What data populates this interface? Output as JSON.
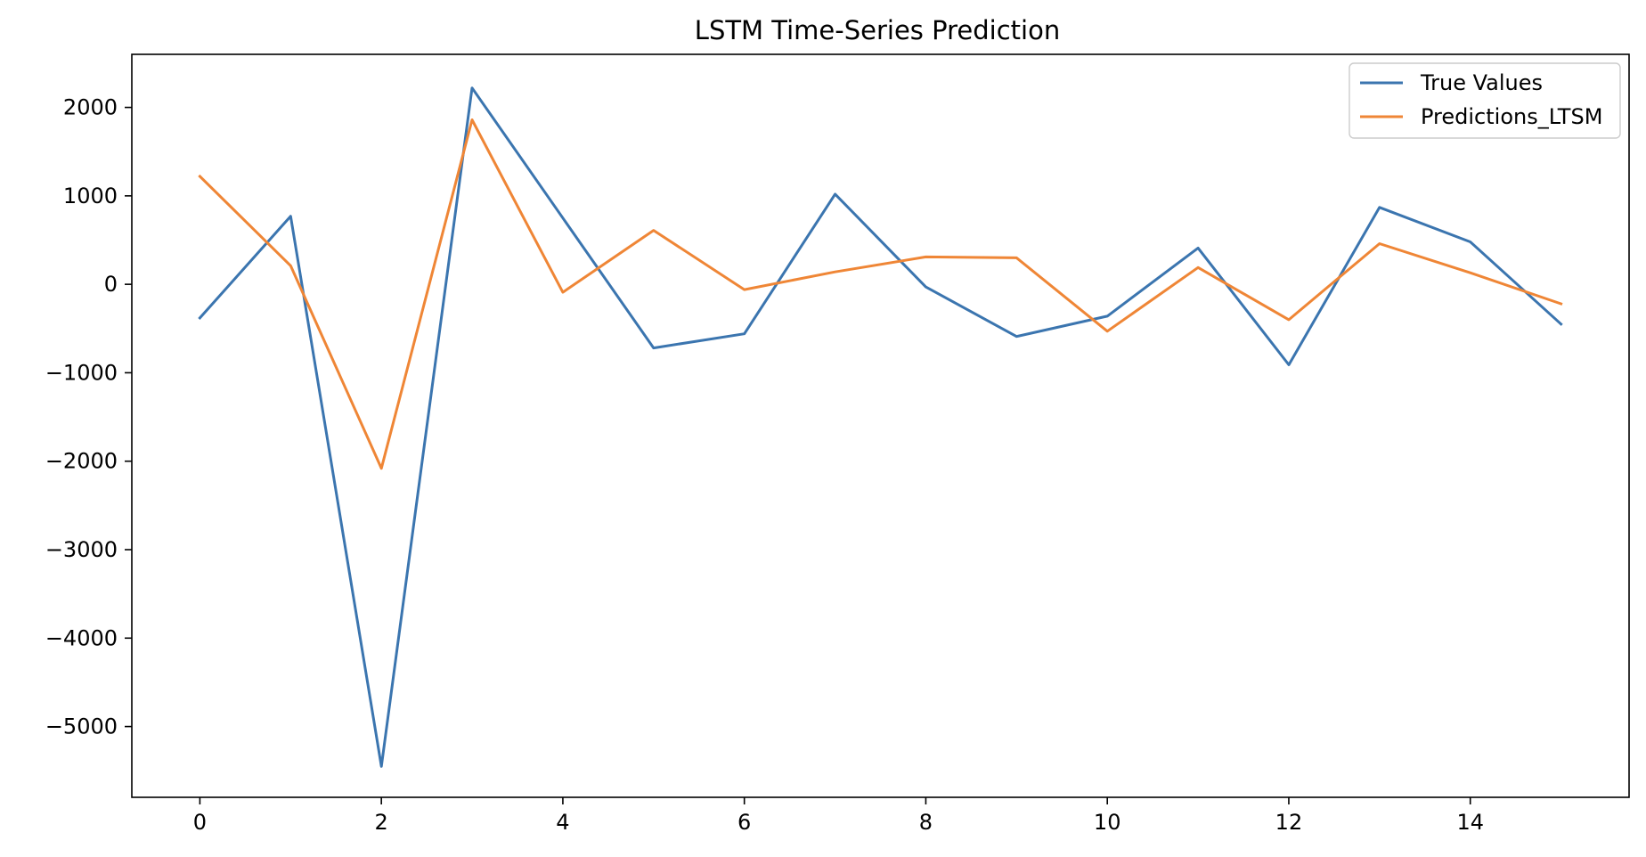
{
  "chart_data": {
    "type": "line",
    "title": "LSTM Time-Series Prediction",
    "xlabel": "",
    "ylabel": "",
    "x": [
      0,
      1,
      2,
      3,
      4,
      5,
      6,
      7,
      8,
      9,
      10,
      11,
      12,
      13,
      14,
      15
    ],
    "xlim": [
      -0.75,
      15.75
    ],
    "ylim": [
      -5800,
      2600
    ],
    "xticks": [
      0,
      2,
      4,
      6,
      8,
      10,
      12,
      14
    ],
    "xtick_labels": [
      "0",
      "2",
      "4",
      "6",
      "8",
      "10",
      "12",
      "14"
    ],
    "yticks": [
      2000,
      1000,
      0,
      -1000,
      -2000,
      -3000,
      -4000,
      -5000
    ],
    "ytick_labels": [
      "2000",
      "1000",
      "0",
      "−1000",
      "−2000",
      "−3000",
      "−4000",
      "−5000"
    ],
    "grid": false,
    "legend": "top-right",
    "series": [
      {
        "name": "True Values",
        "color": "#3b75af",
        "values": [
          -380,
          770,
          -5450,
          2220,
          750,
          -720,
          -560,
          1020,
          -30,
          -590,
          -360,
          410,
          -910,
          870,
          480,
          -450
        ]
      },
      {
        "name": "Predictions_LTSM",
        "color": "#ef8636",
        "values": [
          1220,
          210,
          -2080,
          1860,
          -90,
          610,
          -60,
          140,
          310,
          300,
          -530,
          190,
          -400,
          460,
          130,
          -220
        ]
      }
    ]
  }
}
